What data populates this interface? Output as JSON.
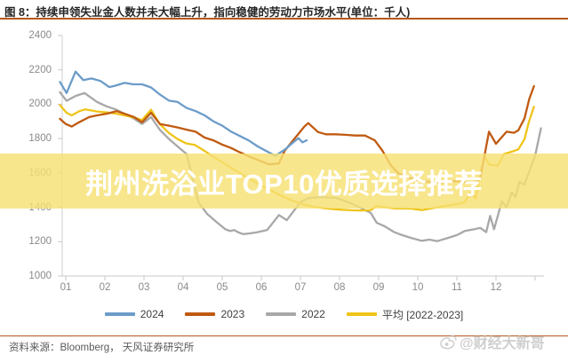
{
  "header": {
    "title": "图 8：持续申领失业金人数并未大幅上升，指向稳健的劳动力市场水平(单位：千人)"
  },
  "overlay": {
    "text": "荆州洗浴业TOP10优质选择推荐",
    "band_color": "#F6E074"
  },
  "footer": {
    "source": "资料来源：Bloomberg， 天风证券研究所",
    "watermark": "@财经大新哥"
  },
  "chart_data": {
    "type": "line",
    "title": "持续申领失业金人数并未大幅上升，指向稳健的劳动力市场水平",
    "unit": "千人",
    "grid": false,
    "legend_position": "bottom",
    "x_axis": {
      "ticks": [
        "01",
        "02",
        "03",
        "04",
        "05",
        "06",
        "07",
        "08",
        "09",
        "10",
        "11",
        "12"
      ],
      "range": [
        0.85,
        13.2
      ]
    },
    "y_axis": {
      "ticks": [
        2400,
        2200,
        2000,
        1800,
        1600,
        1400,
        1200,
        1000
      ],
      "min": 1000,
      "max": 2400
    },
    "series": [
      {
        "name": "2024",
        "color": "#6C9CC9",
        "points": [
          [
            0.85,
            2130
          ],
          [
            1.02,
            2065
          ],
          [
            1.25,
            2190
          ],
          [
            1.45,
            2140
          ],
          [
            1.66,
            2150
          ],
          [
            1.89,
            2135
          ],
          [
            2.11,
            2100
          ],
          [
            2.27,
            2108
          ],
          [
            2.5,
            2124
          ],
          [
            2.73,
            2116
          ],
          [
            2.95,
            2116
          ],
          [
            3.18,
            2098
          ],
          [
            3.41,
            2056
          ],
          [
            3.64,
            2021
          ],
          [
            3.86,
            2013
          ],
          [
            4.09,
            1978
          ],
          [
            4.32,
            1960
          ],
          [
            4.55,
            1935
          ],
          [
            4.77,
            1901
          ],
          [
            5.0,
            1875
          ],
          [
            5.23,
            1840
          ],
          [
            5.45,
            1815
          ],
          [
            5.68,
            1789
          ],
          [
            5.91,
            1754
          ],
          [
            6.14,
            1726
          ],
          [
            6.36,
            1700
          ],
          [
            6.59,
            1734
          ],
          [
            6.8,
            1775
          ],
          [
            6.95,
            1803
          ],
          [
            7.05,
            1778
          ],
          [
            7.16,
            1790
          ]
        ]
      },
      {
        "name": "2023",
        "color": "#C05A11",
        "points": [
          [
            0.85,
            1915
          ],
          [
            1.0,
            1885
          ],
          [
            1.15,
            1870
          ],
          [
            1.3,
            1890
          ],
          [
            1.6,
            1925
          ],
          [
            1.8,
            1935
          ],
          [
            2.05,
            1945
          ],
          [
            2.3,
            1960
          ],
          [
            2.5,
            1945
          ],
          [
            2.75,
            1925
          ],
          [
            2.95,
            1895
          ],
          [
            3.18,
            1950
          ],
          [
            3.41,
            1885
          ],
          [
            3.64,
            1875
          ],
          [
            3.86,
            1865
          ],
          [
            4.09,
            1852
          ],
          [
            4.32,
            1840
          ],
          [
            4.55,
            1806
          ],
          [
            4.77,
            1790
          ],
          [
            5.0,
            1765
          ],
          [
            5.23,
            1745
          ],
          [
            5.45,
            1720
          ],
          [
            5.7,
            1695
          ],
          [
            5.95,
            1672
          ],
          [
            6.2,
            1650
          ],
          [
            6.45,
            1655
          ],
          [
            6.6,
            1730
          ],
          [
            6.85,
            1800
          ],
          [
            7.1,
            1870
          ],
          [
            7.2,
            1890
          ],
          [
            7.45,
            1838
          ],
          [
            7.65,
            1825
          ],
          [
            7.9,
            1825
          ],
          [
            8.15,
            1822
          ],
          [
            8.4,
            1818
          ],
          [
            8.65,
            1818
          ],
          [
            8.9,
            1790
          ],
          [
            9.1,
            1728
          ],
          [
            9.3,
            1648
          ],
          [
            9.5,
            1598
          ],
          [
            9.75,
            1572
          ],
          [
            10.0,
            1558
          ],
          [
            10.3,
            1548
          ],
          [
            10.6,
            1542
          ],
          [
            10.9,
            1552
          ],
          [
            11.2,
            1548
          ],
          [
            11.45,
            1542
          ],
          [
            11.6,
            1572
          ],
          [
            11.82,
            1840
          ],
          [
            12.0,
            1770
          ],
          [
            12.27,
            1840
          ],
          [
            12.46,
            1834
          ],
          [
            12.57,
            1848
          ],
          [
            12.73,
            1918
          ],
          [
            12.85,
            2030
          ],
          [
            12.97,
            2105
          ]
        ]
      },
      {
        "name": "2022",
        "color": "#A8A8A8",
        "points": [
          [
            0.85,
            2070
          ],
          [
            1.02,
            2020
          ],
          [
            1.25,
            2048
          ],
          [
            1.48,
            2065
          ],
          [
            1.8,
            2013
          ],
          [
            2.04,
            1988
          ],
          [
            2.27,
            1970
          ],
          [
            2.5,
            1945
          ],
          [
            2.73,
            1918
          ],
          [
            2.95,
            1885
          ],
          [
            3.18,
            1925
          ],
          [
            3.41,
            1850
          ],
          [
            3.64,
            1797
          ],
          [
            3.86,
            1754
          ],
          [
            4.09,
            1710
          ],
          [
            4.25,
            1560
          ],
          [
            4.4,
            1425
          ],
          [
            4.62,
            1360
          ],
          [
            4.85,
            1315
          ],
          [
            5.08,
            1272
          ],
          [
            5.2,
            1262
          ],
          [
            5.31,
            1267
          ],
          [
            5.42,
            1253
          ],
          [
            5.54,
            1244
          ],
          [
            5.7,
            1248
          ],
          [
            5.9,
            1255
          ],
          [
            6.15,
            1268
          ],
          [
            6.45,
            1355
          ],
          [
            6.65,
            1325
          ],
          [
            7.0,
            1430
          ],
          [
            7.2,
            1453
          ],
          [
            7.5,
            1460
          ],
          [
            7.9,
            1455
          ],
          [
            8.1,
            1440
          ],
          [
            8.35,
            1418
          ],
          [
            8.8,
            1367
          ],
          [
            8.95,
            1310
          ],
          [
            9.15,
            1290
          ],
          [
            9.4,
            1255
          ],
          [
            9.6,
            1238
          ],
          [
            9.85,
            1220
          ],
          [
            10.1,
            1205
          ],
          [
            10.3,
            1212
          ],
          [
            10.5,
            1203
          ],
          [
            10.75,
            1220
          ],
          [
            11.0,
            1238
          ],
          [
            11.2,
            1262
          ],
          [
            11.45,
            1272
          ],
          [
            11.6,
            1280
          ],
          [
            11.75,
            1255
          ],
          [
            11.85,
            1350
          ],
          [
            11.95,
            1272
          ],
          [
            12.15,
            1435
          ],
          [
            12.27,
            1400
          ],
          [
            12.4,
            1487
          ],
          [
            12.5,
            1460
          ],
          [
            12.6,
            1548
          ],
          [
            12.72,
            1530
          ],
          [
            12.85,
            1608
          ],
          [
            13.0,
            1700
          ],
          [
            13.15,
            1860
          ]
        ]
      },
      {
        "name": "平均 [2022-2023]",
        "color": "#EFC419",
        "points": [
          [
            0.85,
            1995
          ],
          [
            1.02,
            1950
          ],
          [
            1.15,
            1935
          ],
          [
            1.35,
            1960
          ],
          [
            1.5,
            1970
          ],
          [
            1.8,
            1958
          ],
          [
            2.05,
            1952
          ],
          [
            2.3,
            1945
          ],
          [
            2.5,
            1935
          ],
          [
            2.75,
            1922
          ],
          [
            2.95,
            1908
          ],
          [
            3.18,
            1968
          ],
          [
            3.41,
            1883
          ],
          [
            3.64,
            1832
          ],
          [
            3.86,
            1797
          ],
          [
            4.09,
            1771
          ],
          [
            4.3,
            1763
          ],
          [
            4.55,
            1728
          ],
          [
            4.8,
            1690
          ],
          [
            5.05,
            1655
          ],
          [
            5.3,
            1620
          ],
          [
            5.55,
            1585
          ],
          [
            5.8,
            1552
          ],
          [
            6.05,
            1522
          ],
          [
            6.3,
            1492
          ],
          [
            6.55,
            1462
          ],
          [
            6.8,
            1438
          ],
          [
            7.05,
            1418
          ],
          [
            7.3,
            1405
          ],
          [
            7.55,
            1396
          ],
          [
            7.8,
            1390
          ],
          [
            8.05,
            1386
          ],
          [
            8.3,
            1383
          ],
          [
            8.55,
            1381
          ],
          [
            8.8,
            1384
          ],
          [
            8.95,
            1408
          ],
          [
            9.16,
            1400
          ],
          [
            9.4,
            1393
          ],
          [
            9.85,
            1392
          ],
          [
            10.1,
            1384
          ],
          [
            10.5,
            1400
          ],
          [
            10.75,
            1410
          ],
          [
            11.0,
            1418
          ],
          [
            11.2,
            1428
          ],
          [
            11.36,
            1487
          ],
          [
            11.48,
            1452
          ],
          [
            11.7,
            1700
          ],
          [
            11.82,
            1650
          ],
          [
            12.05,
            1642
          ],
          [
            12.2,
            1710
          ],
          [
            12.35,
            1720
          ],
          [
            12.46,
            1728
          ],
          [
            12.57,
            1737
          ],
          [
            12.73,
            1797
          ],
          [
            12.84,
            1898
          ],
          [
            12.97,
            1985
          ]
        ]
      }
    ]
  }
}
